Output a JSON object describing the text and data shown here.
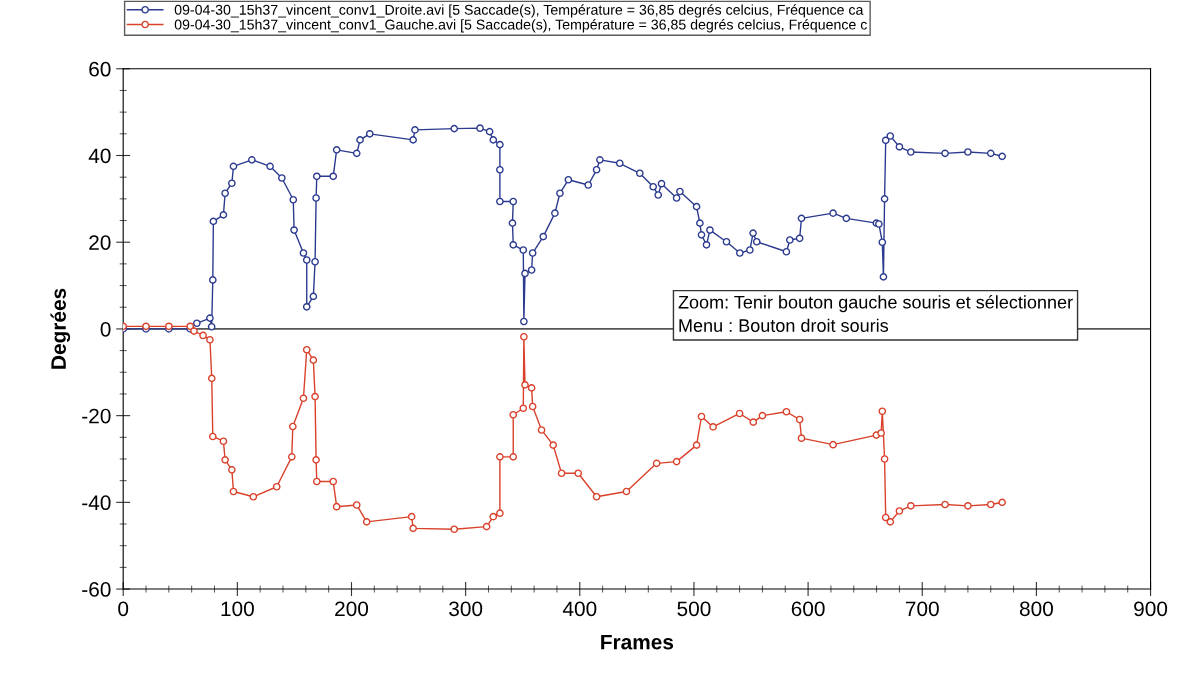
{
  "chart_data": {
    "type": "line",
    "xlabel": "Frames",
    "ylabel": "Degrées",
    "xlim": [
      0,
      900
    ],
    "xticks": [
      0,
      100,
      200,
      300,
      400,
      500,
      600,
      700,
      800,
      900
    ],
    "ylim": [
      -60,
      60
    ],
    "yticks": [
      -60,
      -40,
      -20,
      0,
      20,
      40,
      60
    ],
    "grid": false,
    "legend": "top",
    "marker": "circle",
    "line_style": "solid",
    "ref_lines": [
      {
        "axis": "y",
        "value": 0,
        "color": "#555555"
      }
    ],
    "annotations": [
      "Zoom: Tenir bouton gauche souris et sélectionner\nMenu : Bouton droit souris"
    ],
    "series": [
      {
        "name": "09-04-30_15h37_vincent_conv1_Droite.avi [5 Saccade(s), Température = 36,85 degrés celcius, Fréquence ca",
        "color": "#2b3a8f",
        "x": [
          0,
          20,
          40,
          58.7,
          64.5,
          76,
          77.5,
          78.5,
          79,
          87.8,
          89.3,
          95.2,
          96.6,
          112.7,
          128.7,
          139,
          149,
          149.7,
          157.9,
          160.8,
          160.8,
          166.6,
          168.1,
          169,
          169.6,
          184,
          187,
          204.6,
          207.5,
          216,
          254,
          255.6,
          290,
          312.6,
          321,
          324.2,
          330,
          330,
          330,
          341.7,
          341,
          341.7,
          350.5,
          351,
          352,
          357.8,
          358.7,
          368,
          378.2,
          382.6,
          390,
          407.4,
          414.7,
          417.6,
          435,
          452.6,
          464.3,
          468.7,
          471.6,
          484.8,
          487.7,
          502.3,
          505.2,
          506.6,
          511,
          514,
          528.5,
          540.2,
          549,
          551.8,
          555,
          581,
          584,
          592.6,
          594.2,
          621.9,
          633.5,
          659.8,
          662,
          665,
          666,
          667,
          668,
          672,
          680,
          690,
          720,
          740,
          760,
          770
        ],
        "values": [
          0,
          0,
          0,
          0,
          1.3,
          2.5,
          0.5,
          11.3,
          24.8,
          26.3,
          31.3,
          33.6,
          37.5,
          39,
          37.5,
          34.8,
          29.8,
          22.8,
          17.5,
          15.9,
          5.1,
          7.5,
          15.5,
          30.2,
          35.2,
          35.2,
          41.3,
          40.5,
          43.6,
          45,
          43.6,
          45.9,
          46.2,
          46.3,
          45.5,
          43.6,
          42.5,
          36.7,
          29.4,
          29.4,
          24.4,
          19.4,
          18.2,
          1.7,
          12.8,
          13.6,
          17.5,
          21.3,
          26.7,
          31.3,
          34.4,
          33.2,
          36.7,
          39,
          38.2,
          35.9,
          32.8,
          30.9,
          33.5,
          30.2,
          31.7,
          28.2,
          24.4,
          21.7,
          19.4,
          22.8,
          20.1,
          17.5,
          18.2,
          22.1,
          20.1,
          17.8,
          20.5,
          20.9,
          25.5,
          26.7,
          25.5,
          24.4,
          24.2,
          20,
          12,
          30,
          43.5,
          44.5,
          42,
          40.8,
          40.5,
          40.8,
          40.5,
          39.8
        ]
      },
      {
        "name": "09-04-30_15h37_vincent_conv1_Gauche.avi [5 Saccade(s), Température = 36,85 degrés celcius, Fréquence c",
        "color": "#d9412b",
        "x": [
          0,
          20,
          40,
          58.7,
          62,
          70,
          76,
          77.6,
          78.5,
          87.8,
          89.3,
          95.2,
          96.6,
          114,
          134.5,
          147.7,
          148.6,
          157.9,
          160.8,
          166.6,
          168.1,
          169,
          169.6,
          184,
          187,
          204.6,
          213.3,
          252.7,
          254,
          290,
          318.4,
          324.2,
          330,
          330,
          341.7,
          341.7,
          350.5,
          351,
          352,
          357.8,
          358.7,
          366.5,
          376.7,
          384,
          398.6,
          414.7,
          440.9,
          467.3,
          484.8,
          502.3,
          506.6,
          516.8,
          540,
          552,
          560,
          581,
          592.6,
          594.2,
          621.9,
          659.8,
          664,
          665,
          667,
          668,
          672,
          680,
          690,
          720,
          740,
          760,
          770
        ],
        "values": [
          0.6,
          0.6,
          0.6,
          0.6,
          -0.5,
          -1.5,
          -2.5,
          -11.4,
          -24.8,
          -25.9,
          -30.2,
          -32.5,
          -37.5,
          -38.7,
          -36.4,
          -29.5,
          -22.5,
          -16,
          -4.8,
          -7.2,
          -15.6,
          -30.2,
          -35.2,
          -35.2,
          -41,
          -40.6,
          -44.5,
          -43.3,
          -46,
          -46.2,
          -45.6,
          -43.3,
          -42.5,
          -29.5,
          -29.5,
          -19.8,
          -18.3,
          -1.8,
          -12.9,
          -13.6,
          -17.9,
          -23.3,
          -26.8,
          -33.3,
          -33.3,
          -38.7,
          -37.5,
          -31,
          -30.6,
          -26.8,
          -20.2,
          -22.6,
          -19.5,
          -21.5,
          -20,
          -19.1,
          -20.9,
          -25.2,
          -26.7,
          -24.5,
          -24,
          -19,
          -30,
          -43.5,
          -44.5,
          -42,
          -40.8,
          -40.5,
          -40.8,
          -40.5,
          -40
        ]
      }
    ]
  }
}
